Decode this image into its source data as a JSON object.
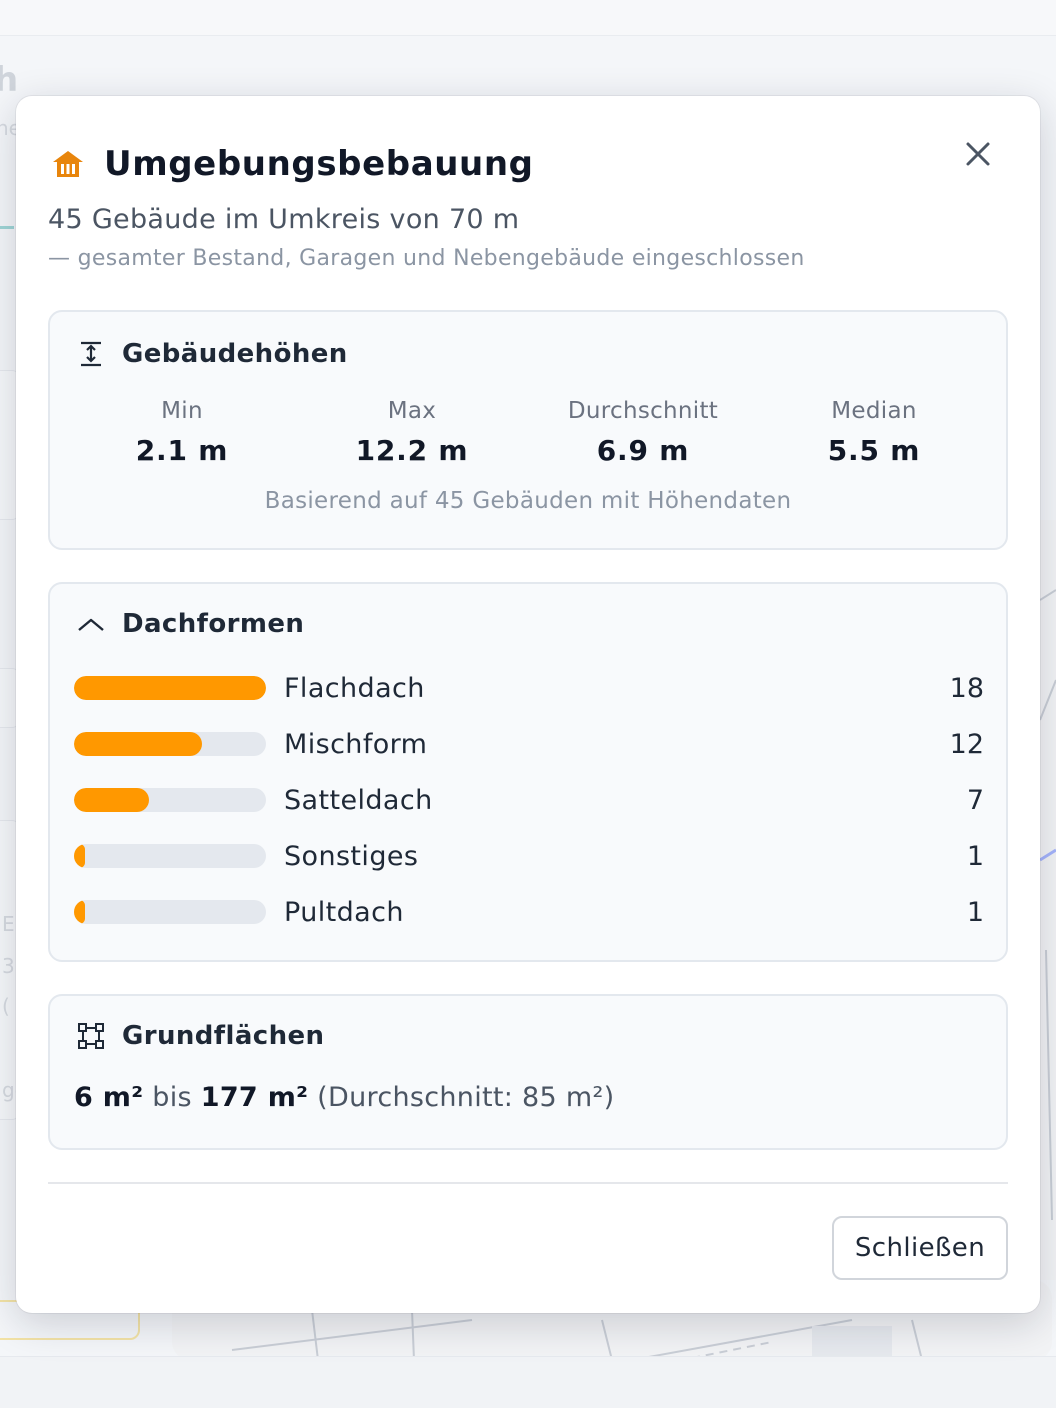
{
  "background": {
    "heading_fragment": "h",
    "sub_fragment": "ne",
    "side_fragments": [
      "E",
      "3.",
      "(",
      "ge"
    ]
  },
  "modal": {
    "title": "Umgebungsbebauung",
    "title_icon": "building-icon",
    "close_icon": "close-icon",
    "summary": "45 Gebäude im Umkreis von 70 m",
    "summary_note": "— gesamter Bestand, Garagen und Nebengebäude eingeschlossen",
    "accent_color": "#ff9800",
    "heights": {
      "title": "Gebäudehöhen",
      "icon": "height-icon",
      "stats": [
        {
          "label": "Min",
          "value": "2.1 m"
        },
        {
          "label": "Max",
          "value": "12.2 m"
        },
        {
          "label": "Durchschnitt",
          "value": "6.9 m"
        },
        {
          "label": "Median",
          "value": "5.5 m"
        }
      ],
      "note": "Basierend auf 45 Gebäuden mit Höhendaten"
    },
    "roofs": {
      "title": "Dachformen",
      "icon": "roof-icon",
      "max_count": 18,
      "items": [
        {
          "label": "Flachdach",
          "count": "18",
          "value": 18
        },
        {
          "label": "Mischform",
          "count": "12",
          "value": 12
        },
        {
          "label": "Satteldach",
          "count": "7",
          "value": 7
        },
        {
          "label": "Sonstiges",
          "count": "1",
          "value": 1
        },
        {
          "label": "Pultdach",
          "count": "1",
          "value": 1
        }
      ]
    },
    "areas": {
      "title": "Grundflächen",
      "icon": "area-icon",
      "min": "6 m²",
      "connector": "bis",
      "max": "177 m²",
      "avg": "(Durchschnitt: 85 m²)"
    },
    "close_button": "Schließen"
  }
}
